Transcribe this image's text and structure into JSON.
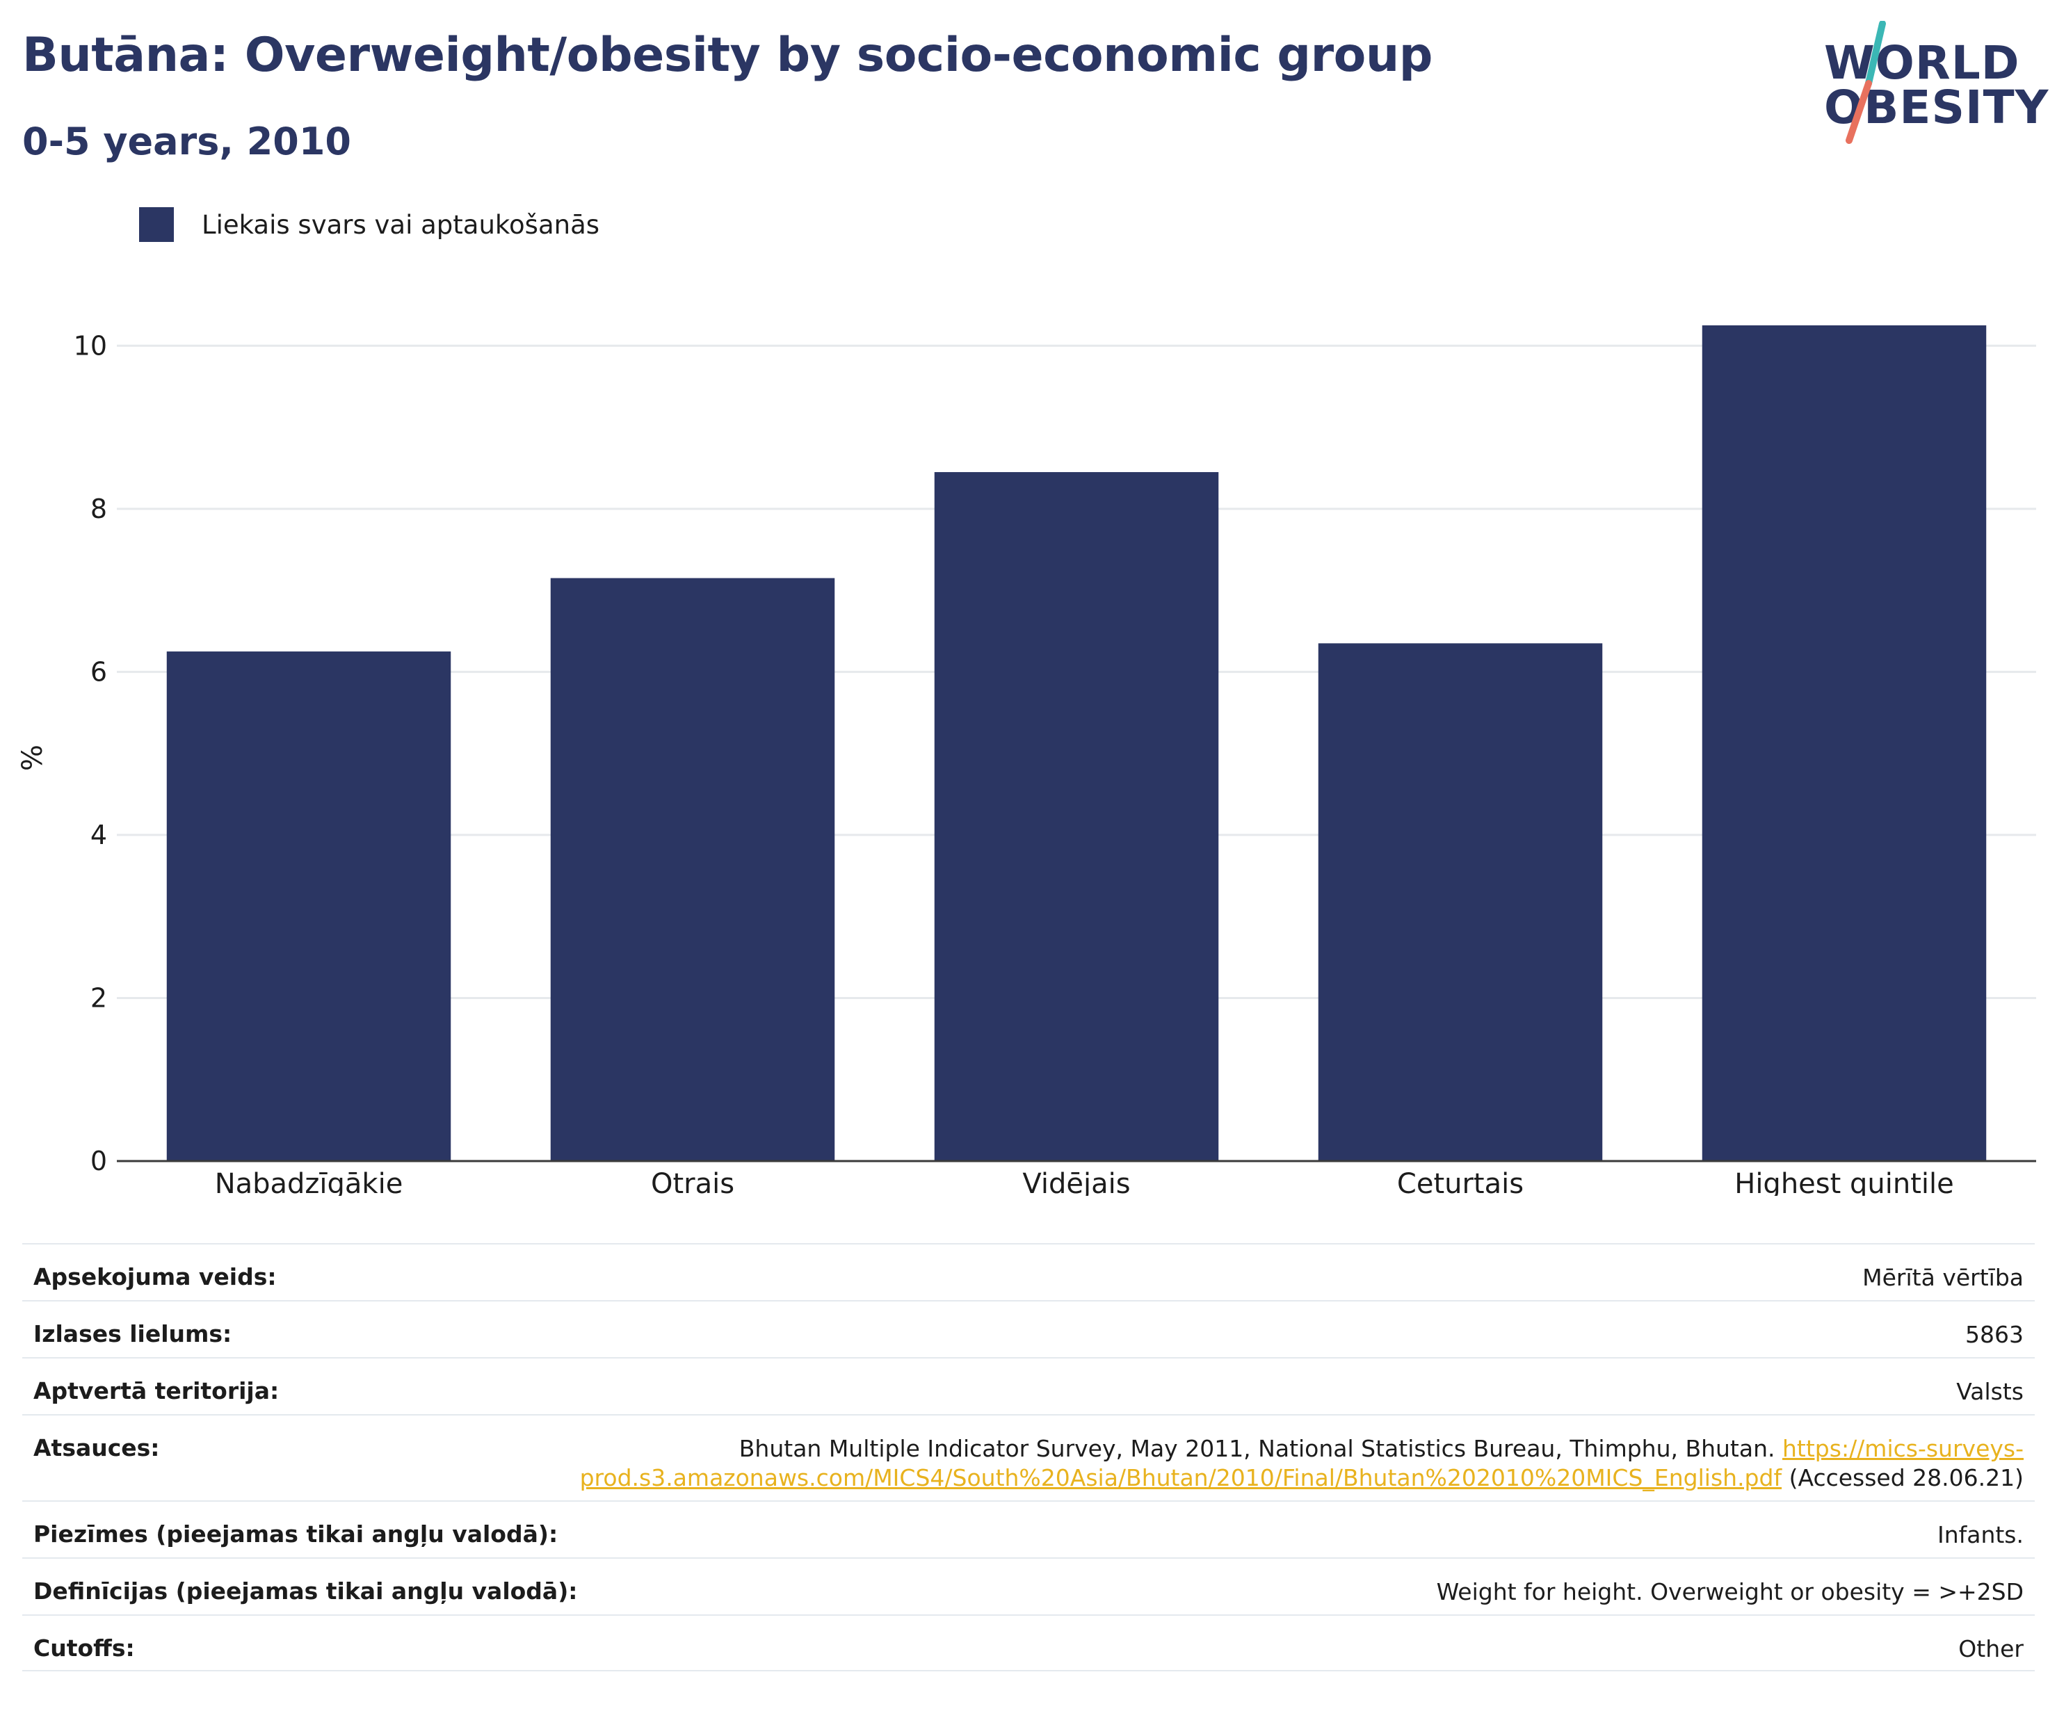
{
  "header": {
    "title": "Butāna: Overweight/obesity by socio-economic group",
    "subtitle": "0-5 years, 2010"
  },
  "logo": {
    "line1": "WORLD",
    "line2": "OBESITY",
    "accent_teal": "#3bb7b5",
    "accent_coral": "#e8715e"
  },
  "legend": {
    "label": "Liekais svars vai aptaukošanās",
    "color": "#2b3663"
  },
  "chart_data": {
    "type": "bar",
    "categories": [
      "Nabadzīgākie",
      "Otrais",
      "Vidējais",
      "Ceturtais",
      "Highest quintile"
    ],
    "series": [
      {
        "name": "Liekais svars vai aptaukošanās",
        "values": [
          6.25,
          7.15,
          8.45,
          6.35,
          10.25
        ],
        "color": "#2b3663"
      }
    ],
    "ylabel": "%",
    "xlabel": "",
    "ylim": [
      0,
      11
    ],
    "yticks": [
      0,
      2,
      4,
      6,
      8,
      10
    ],
    "grid": true,
    "legend_position": "top-left"
  },
  "meta": {
    "survey_type_label": "Apsekojuma veids:",
    "survey_type_value": "Mērītā vērtība",
    "sample_size_label": "Izlases lielums:",
    "sample_size_value": "5863",
    "coverage_label": "Aptvertā teritorija:",
    "coverage_value": "Valsts",
    "sources_label": "Atsauces:",
    "sources_text": "Bhutan Multiple Indicator Survey, May 2011, National Statistics Bureau, Thimphu, Bhutan.",
    "sources_link_part1": "https://mics-surveys-",
    "sources_link_part2": "prod.s3.amazonaws.com/MICS4/South%20Asia/Bhutan/2010/Final/Bhutan%202010%20MICS_English.pdf",
    "sources_accessed": "(Accessed 28.06.21)",
    "notes_label": "Piezīmes (pieejamas tikai angļu valodā):",
    "notes_value": "Infants.",
    "definitions_label": "Definīcijas (pieejamas tikai angļu valodā):",
    "definitions_value": "Weight for height. Overweight or obesity = >+2SD",
    "cutoffs_label": "Cutoffs:",
    "cutoffs_value": "Other"
  }
}
